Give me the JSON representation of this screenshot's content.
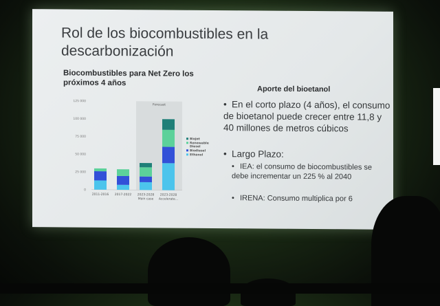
{
  "slide": {
    "title": "Rol de los biocombustibles en la descarbonización",
    "title_line1": "Rol de los biocombustibles en la",
    "title_line2": "descarbonización",
    "chart_title_line1": "Biocombustibles para Net Zero los",
    "chart_title_line2": "próximos 4 años",
    "right_heading": "Aporte del bioetanol",
    "bullets": [
      {
        "text": "En el corto plazo (4 años), el consumo de bioetanol puede crecer entre 11,8 y 40 millones de metros cúbicos"
      },
      {
        "text": "Largo Plazo:"
      }
    ],
    "sub_bullets": [
      {
        "text": "IEA: el consumo de biocombustibles se debe incrementar un 225 % al 2040"
      },
      {
        "text": "IRENA: Consumo multiplica por 6"
      }
    ],
    "bullet_glyph": "•"
  },
  "chart_data": {
    "type": "bar",
    "stacked": true,
    "title": "Biocombustibles para Net Zero los próximos 4 años",
    "categories": [
      "2011-2016",
      "2017-2022",
      "2023-2028 Main case",
      "2023-2028 Accelerate..."
    ],
    "category_lines": [
      [
        "2011-2016",
        ""
      ],
      [
        "2017-2022",
        ""
      ],
      [
        "2023-2028",
        "Main case"
      ],
      [
        "2023-2028",
        "Accelerate..."
      ]
    ],
    "series": [
      {
        "name": "Ethanol",
        "color": "#4cc4ec",
        "values": [
          13000,
          7000,
          11000,
          38000
        ]
      },
      {
        "name": "Biodiesel",
        "color": "#3250d8",
        "values": [
          13000,
          12500,
          8000,
          23000
        ]
      },
      {
        "name": "Renewable Diesel",
        "color": "#5cd19a",
        "values": [
          4000,
          9500,
          13000,
          24000
        ]
      },
      {
        "name": "Biojet",
        "color": "#1f7f78",
        "values": [
          0,
          0,
          6000,
          15000
        ]
      }
    ],
    "legend_order": [
      "Biojet",
      "Renewable Diesel",
      "Biodiesel",
      "Ethanol"
    ],
    "legend_placement": "right",
    "yticks": [
      "0",
      "25 000",
      "50 000",
      "75 000",
      "100 000",
      "125 000"
    ],
    "ylim": [
      0,
      125000
    ],
    "annotation": "Forecast",
    "forecast_categories": [
      2,
      3
    ],
    "grid": false
  }
}
